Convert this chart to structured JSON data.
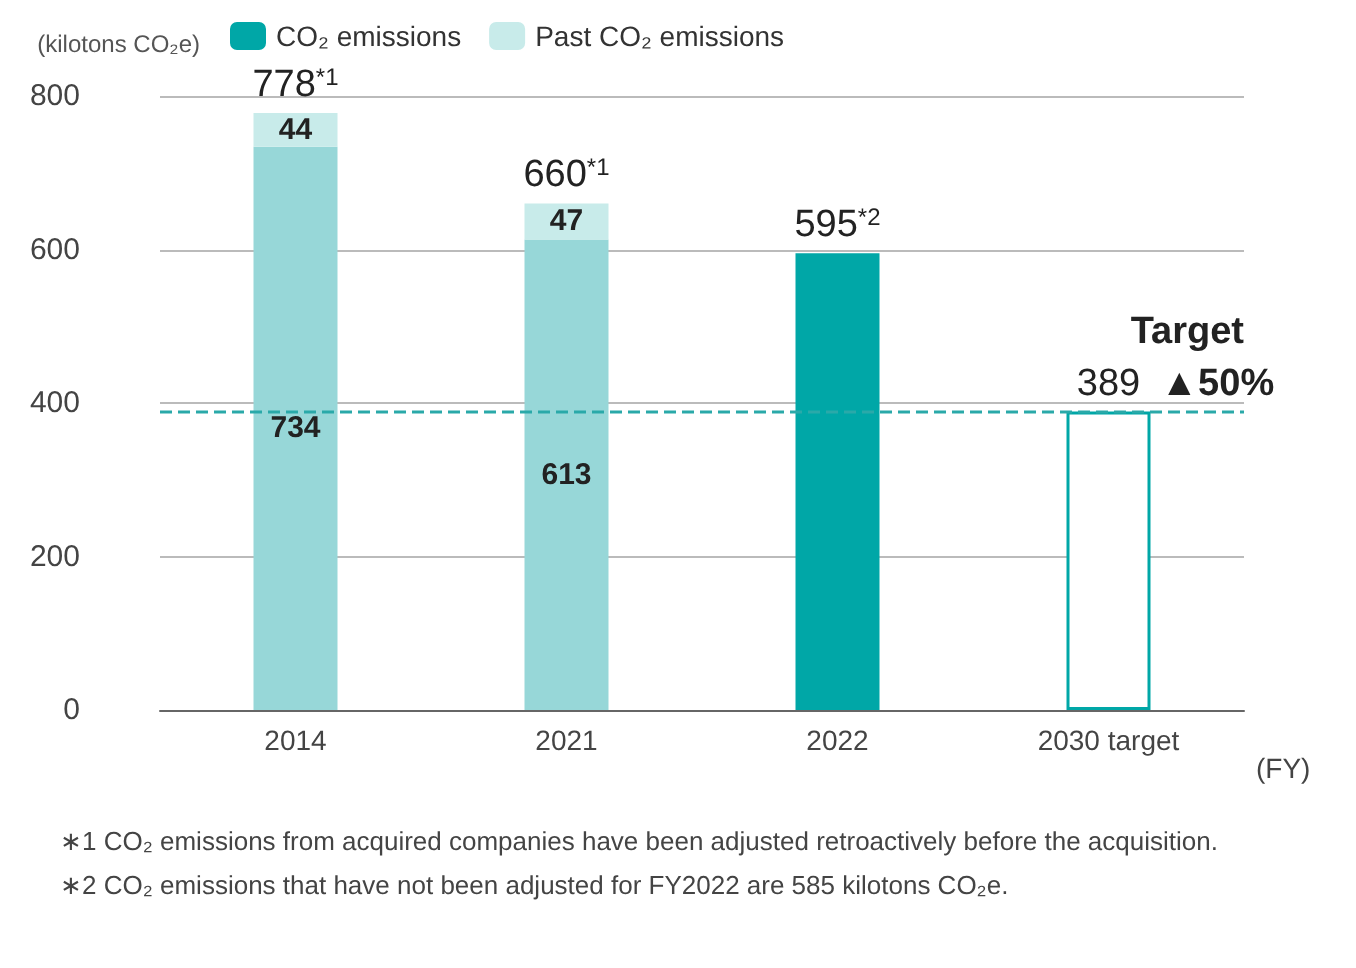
{
  "chart_data": {
    "type": "bar",
    "stacked": true,
    "ylabel": "(kilotons CO₂e)",
    "xlabel": "(FY)",
    "categories": [
      "2014",
      "2021",
      "2022",
      "2030 target"
    ],
    "series": [
      {
        "name": "CO₂ emissions",
        "color": "#00a7a7",
        "colors": [
          "#97d7d8",
          "#97d7d8",
          "#00a7a7",
          "#ffffff"
        ],
        "values": [
          734,
          613,
          595,
          389
        ],
        "value_labels": [
          "734",
          "613",
          null,
          null
        ]
      },
      {
        "name": "Past CO₂ emissions",
        "color": "#c8ebea",
        "values": [
          44,
          47,
          null,
          null
        ],
        "value_labels": [
          "44",
          "47",
          null,
          null
        ]
      }
    ],
    "totals": [
      "778$^{*1}$",
      "660$^{*1}$",
      "595$^{*2}$",
      "389"
    ],
    "ylim": [
      0,
      800
    ],
    "yticks": [
      0,
      200,
      400,
      600,
      800
    ],
    "grid": "y",
    "legend": "top left",
    "ref_lines": [
      {
        "axis": "y",
        "value": 389,
        "label": "Target",
        "color": "#2aa9a9",
        "line_style": "dashed"
      }
    ],
    "annotations": [
      {
        "text": "▲50%",
        "x": "2030 target",
        "y": 389
      },
      "∗1 CO₂ emissions from acquired companies have been adjusted retroactively before the acquisition.",
      "∗2 CO₂ emissions that have not been adjusted for FY2022 are 585 kilotons CO₂e."
    ]
  }
}
